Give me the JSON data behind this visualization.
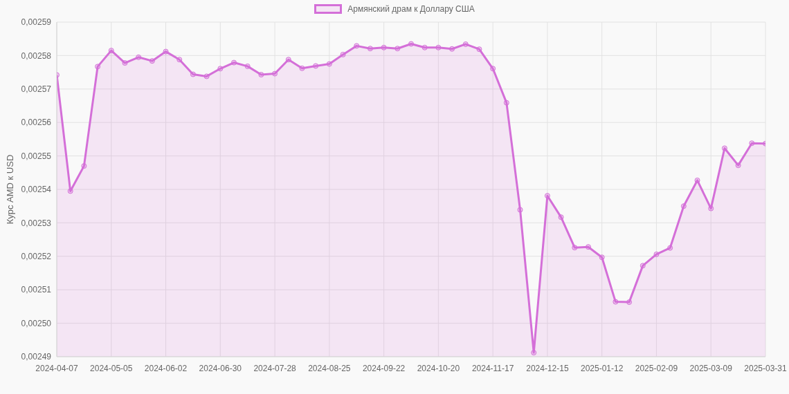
{
  "chart_data": {
    "type": "area",
    "ylabel": "Курс AMD к USD",
    "categories": [
      "2024-04-07",
      null,
      null,
      null,
      "2024-05-05",
      null,
      null,
      null,
      "2024-06-02",
      null,
      null,
      null,
      "2024-06-30",
      null,
      null,
      null,
      "2024-07-28",
      null,
      null,
      null,
      "2024-08-25",
      null,
      null,
      null,
      "2024-09-22",
      null,
      null,
      null,
      "2024-10-20",
      null,
      null,
      null,
      "2024-11-17",
      null,
      null,
      null,
      "2024-12-15",
      null,
      null,
      null,
      "2025-01-12",
      null,
      null,
      null,
      "2025-02-09",
      null,
      null,
      null,
      "2025-03-09",
      null,
      null,
      null,
      "2025-03-31"
    ],
    "series": [
      {
        "name": "Армянский драм к Доллару США",
        "color": "#d46fd8",
        "values": [
          0.0025742,
          0.0025395,
          0.002547,
          0.0025767,
          0.0025815,
          0.0025778,
          0.0025795,
          0.0025784,
          0.0025812,
          0.0025788,
          0.0025744,
          0.0025738,
          0.0025761,
          0.0025779,
          0.0025768,
          0.0025743,
          0.0025746,
          0.0025788,
          0.0025762,
          0.0025769,
          0.0025775,
          0.0025803,
          0.0025829,
          0.0025821,
          0.0025824,
          0.0025821,
          0.0025835,
          0.0025824,
          0.0025824,
          0.002582,
          0.0025834,
          0.0025819,
          0.0025761,
          0.0025659,
          0.0025339,
          0.0024912,
          0.0025381,
          0.0025317,
          0.0025226,
          0.0025228,
          0.0025197,
          0.0025064,
          0.0025063,
          0.0025172,
          0.0025206,
          0.0025225,
          0.002535,
          0.0025427,
          0.0025343,
          0.0025523,
          0.0025472,
          0.0025538,
          0.0025537
        ]
      }
    ],
    "ylim": [
      0.00249,
      0.00259
    ],
    "yticks": [
      {
        "value": 0.00249,
        "label": "0,00249"
      },
      {
        "value": 0.0025,
        "label": "0,00250"
      },
      {
        "value": 0.00251,
        "label": "0,00251"
      },
      {
        "value": 0.00252,
        "label": "0,00252"
      },
      {
        "value": 0.00253,
        "label": "0,00253"
      },
      {
        "value": 0.00254,
        "label": "0,00254"
      },
      {
        "value": 0.00255,
        "label": "0,00255"
      },
      {
        "value": 0.00256,
        "label": "0,00256"
      },
      {
        "value": 0.00257,
        "label": "0,00257"
      },
      {
        "value": 0.00258,
        "label": "0,00258"
      },
      {
        "value": 0.00259,
        "label": "0,00259"
      }
    ],
    "grid": true,
    "legend": "top",
    "marker": "circle"
  }
}
